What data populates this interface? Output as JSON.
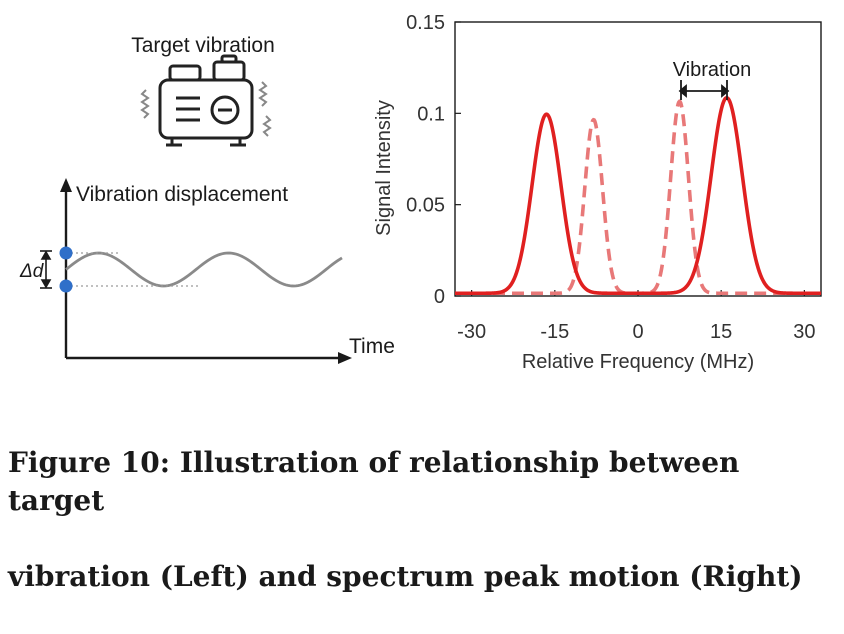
{
  "left_panel": {
    "device_label": "Target vibration",
    "y_axis_label": "Vibration displacement",
    "x_axis_label": "Time",
    "amplitude_label": "Δd",
    "device_icon": "vibrating-device-icon"
  },
  "chart_data": {
    "type": "line",
    "ylabel": "Signal Intensity",
    "xlabel": "Relative Frequency (MHz)",
    "xlim": [
      -33,
      33
    ],
    "ylim": [
      0,
      0.15
    ],
    "xticks": [
      "-30",
      "-15",
      "0",
      "15",
      "30"
    ],
    "yticks": [
      "0",
      "0.05",
      "0.1",
      "0.15"
    ],
    "annotation": "Vibration",
    "series": [
      {
        "style": "solid",
        "color": "#e02020",
        "peaks": [
          {
            "center": -16.5,
            "height": 0.098,
            "width": 2.6
          },
          {
            "center": 16,
            "height": 0.107,
            "width": 2.8
          }
        ]
      },
      {
        "style": "dashed",
        "color": "#e87878",
        "peaks": [
          {
            "center": -8,
            "height": 0.095,
            "width": 1.6
          },
          {
            "center": 7.5,
            "height": 0.105,
            "width": 1.6
          }
        ]
      }
    ]
  },
  "caption": {
    "line1": "Figure 10: Illustration of relationship between target",
    "line2": "vibration (Left) and spectrum peak motion (Right)"
  }
}
